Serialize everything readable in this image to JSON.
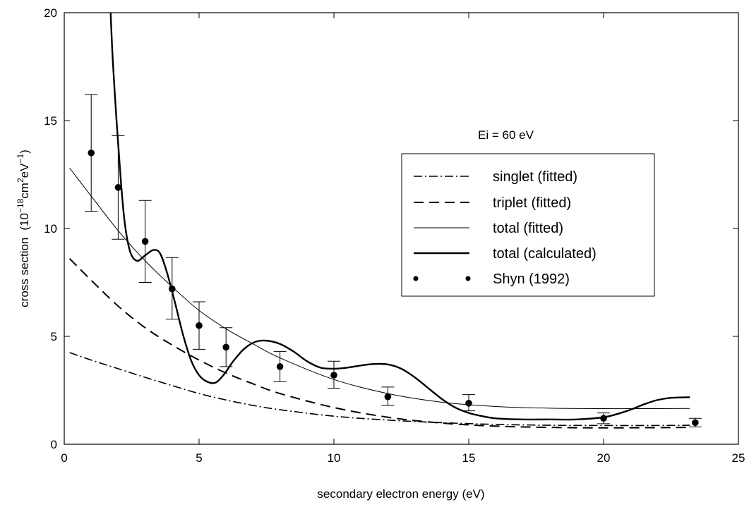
{
  "chart_data": {
    "type": "line",
    "title": "",
    "xlabel": "secondary electron energy (eV)",
    "ylabel": {
      "main": "cross section",
      "unit_open": "(10",
      "exp1": "−18",
      "mid": "cm",
      "exp2": "2",
      "mid2": "eV",
      "exp3": "−1",
      "unit_close": ")"
    },
    "xlim": [
      0,
      25
    ],
    "ylim": [
      0,
      20
    ],
    "xticks": [
      0,
      5,
      10,
      15,
      20,
      25
    ],
    "yticks": [
      0,
      5,
      10,
      15,
      20
    ],
    "xtick_labels": [
      "0",
      "5",
      "10",
      "15",
      "20",
      "25"
    ],
    "ytick_labels": [
      "0",
      "5",
      "10",
      "15",
      "20"
    ],
    "grid": false,
    "legend_position": "right-center",
    "annotation": "Ei = 60 eV",
    "series": [
      {
        "name": "singlet (fitted)",
        "style": "dashdot",
        "x": [
          0.2,
          1,
          2,
          3,
          4,
          5,
          6,
          7,
          8,
          10,
          12,
          14,
          16,
          18,
          20,
          22,
          23.2
        ],
        "y": [
          4.25,
          3.9,
          3.5,
          3.1,
          2.72,
          2.35,
          2.05,
          1.8,
          1.6,
          1.3,
          1.12,
          1.0,
          0.92,
          0.88,
          0.87,
          0.87,
          0.88
        ]
      },
      {
        "name": "triplet (fitted)",
        "style": "dashed",
        "x": [
          0.2,
          1,
          2,
          3,
          4,
          5,
          6,
          7,
          8,
          10,
          12,
          14,
          16,
          18,
          20,
          22,
          23.2
        ],
        "y": [
          8.6,
          7.6,
          6.4,
          5.4,
          4.6,
          3.9,
          3.3,
          2.8,
          2.35,
          1.7,
          1.25,
          0.98,
          0.84,
          0.78,
          0.76,
          0.77,
          0.78
        ]
      },
      {
        "name": "total (fitted)",
        "style": "thin",
        "x": [
          0.2,
          1,
          2,
          3,
          4,
          5,
          6,
          7,
          8,
          10,
          12,
          14,
          16,
          18,
          20,
          22,
          23.2
        ],
        "y": [
          12.8,
          11.5,
          9.9,
          8.5,
          7.3,
          6.2,
          5.35,
          4.65,
          4.0,
          3.0,
          2.35,
          1.95,
          1.75,
          1.67,
          1.65,
          1.65,
          1.66
        ]
      },
      {
        "name": "total (calculated)",
        "style": "thick",
        "x": [
          1.72,
          1.8,
          1.95,
          2.1,
          2.25,
          2.45,
          2.7,
          3.0,
          3.3,
          3.55,
          3.8,
          4.1,
          4.4,
          4.7,
          5.0,
          5.3,
          5.6,
          5.9,
          6.3,
          6.7,
          7.1,
          7.5,
          8.0,
          8.5,
          9.0,
          9.5,
          10.0,
          10.5,
          11.0,
          11.5,
          12.0,
          12.5,
          13.0,
          13.5,
          14.0,
          14.5,
          15.0,
          15.5,
          16.0,
          17.0,
          18.0,
          19.0,
          20.0,
          20.5,
          21.0,
          21.5,
          22.0,
          22.5,
          23.2
        ],
        "y": [
          20.0,
          17.8,
          14.8,
          12.2,
          10.2,
          8.9,
          8.5,
          8.75,
          9.0,
          8.85,
          8.0,
          6.6,
          5.1,
          3.9,
          3.2,
          2.9,
          2.85,
          3.2,
          3.9,
          4.45,
          4.75,
          4.8,
          4.65,
          4.3,
          3.85,
          3.55,
          3.5,
          3.55,
          3.65,
          3.72,
          3.7,
          3.5,
          3.1,
          2.6,
          2.1,
          1.7,
          1.45,
          1.3,
          1.2,
          1.15,
          1.15,
          1.15,
          1.25,
          1.4,
          1.6,
          1.85,
          2.05,
          2.15,
          2.18
        ]
      },
      {
        "name": "Shyn (1992)",
        "style": "points",
        "x": [
          1,
          2,
          3,
          4,
          5,
          6,
          8,
          10,
          12,
          15,
          20,
          23.4
        ],
        "y": [
          13.5,
          11.9,
          9.4,
          7.2,
          5.5,
          4.5,
          3.6,
          3.2,
          2.2,
          1.9,
          1.2,
          1.0
        ],
        "err_low": [
          10.8,
          9.5,
          7.5,
          5.8,
          4.4,
          3.6,
          2.9,
          2.6,
          1.8,
          1.55,
          0.95,
          0.8
        ],
        "err_high": [
          16.2,
          14.3,
          11.3,
          8.65,
          6.6,
          5.4,
          4.3,
          3.85,
          2.65,
          2.3,
          1.45,
          1.2
        ]
      }
    ]
  }
}
